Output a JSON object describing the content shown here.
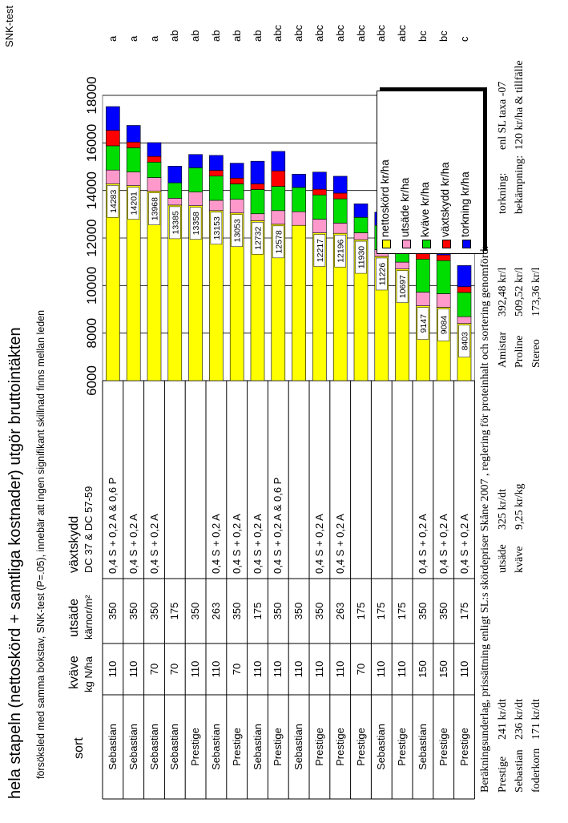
{
  "title": "hela stapeln (nettoskörd + samtliga kostnader) utgör bruttointäkten",
  "subtitle": "försöksled med samma bokstav, SNK-test (P=.05), innebär att ingen signifikant skillnad finns mellan leden",
  "snk_label": "SNK-test",
  "table": {
    "headers": {
      "sort": "sort",
      "kvave": "kväve",
      "kvave_unit": "kg N/ha",
      "utsade": "utsäde",
      "utsade_unit": "kärnor/m²",
      "vaxtskydd": "växtskydd",
      "vaxtskydd_sub": "DC 37 & DC 57-59"
    },
    "rows": [
      {
        "sort": "Sebastian",
        "kvave": "110",
        "utsade": "350",
        "vaxtskydd": "0,4 S + 0,2 A & 0,6 P",
        "sig": "a"
      },
      {
        "sort": "Sebastian",
        "kvave": "110",
        "utsade": "350",
        "vaxtskydd": "0,4 S + 0,2 A",
        "sig": "a"
      },
      {
        "sort": "Sebastian",
        "kvave": "70",
        "utsade": "350",
        "vaxtskydd": "0,4 S + 0,2 A",
        "sig": "a"
      },
      {
        "sort": "Sebastian",
        "kvave": "70",
        "utsade": "175",
        "vaxtskydd": "",
        "sig": "ab"
      },
      {
        "sort": "Prestige",
        "kvave": "110",
        "utsade": "350",
        "vaxtskydd": "",
        "sig": "ab"
      },
      {
        "sort": "Sebastian",
        "kvave": "110",
        "utsade": "263",
        "vaxtskydd": "0,4 S + 0,2 A",
        "sig": "ab"
      },
      {
        "sort": "Prestige",
        "kvave": "70",
        "utsade": "350",
        "vaxtskydd": "0,4 S + 0,2 A",
        "sig": "ab"
      },
      {
        "sort": "Sebastian",
        "kvave": "110",
        "utsade": "175",
        "vaxtskydd": "0,4 S + 0,2 A",
        "sig": "ab"
      },
      {
        "sort": "Prestige",
        "kvave": "110",
        "utsade": "350",
        "vaxtskydd": "0,4 S + 0,2 A & 0,6 P",
        "sig": "abc"
      },
      {
        "sort": "Sebastian",
        "kvave": "110",
        "utsade": "350",
        "vaxtskydd": "",
        "sig": "abc"
      },
      {
        "sort": "Prestige",
        "kvave": "110",
        "utsade": "350",
        "vaxtskydd": "0,4 S + 0,2 A",
        "sig": "abc"
      },
      {
        "sort": "Prestige",
        "kvave": "110",
        "utsade": "263",
        "vaxtskydd": "0,4 S + 0,2 A",
        "sig": "abc"
      },
      {
        "sort": "Prestige",
        "kvave": "70",
        "utsade": "175",
        "vaxtskydd": "",
        "sig": "abc"
      },
      {
        "sort": "Sebastian",
        "kvave": "110",
        "utsade": "175",
        "vaxtskydd": "",
        "sig": "abc"
      },
      {
        "sort": "Prestige",
        "kvave": "110",
        "utsade": "175",
        "vaxtskydd": "",
        "sig": "abc"
      },
      {
        "sort": "Sebastian",
        "kvave": "150",
        "utsade": "350",
        "vaxtskydd": "0,4 S + 0,2 A",
        "sig": "bc"
      },
      {
        "sort": "Prestige",
        "kvave": "150",
        "utsade": "350",
        "vaxtskydd": "0,4 S + 0,2 A",
        "sig": "bc"
      },
      {
        "sort": "Prestige",
        "kvave": "110",
        "utsade": "175",
        "vaxtskydd": "0,4 S + 0,2 A",
        "sig": "c"
      }
    ]
  },
  "chart_data": {
    "type": "bar",
    "stacked": true,
    "orientation": "horizontal",
    "axis_range": [
      6000,
      18000
    ],
    "ticks": [
      "6000",
      "8000",
      "10000",
      "12000",
      "14000",
      "16000",
      "18000"
    ],
    "grid": true,
    "legend_position": "top-right",
    "series": [
      {
        "name": "nettoskörd kr/ha",
        "color": "#ffff00",
        "values": [
          14283,
          14201,
          13968,
          13385,
          13358,
          13153,
          13053,
          12732,
          12578,
          12532,
          12217,
          12196,
          11930,
          11226,
          10697,
          9147,
          9084,
          8403
        ],
        "labels": [
          "14283",
          "14201",
          "13968",
          "13385",
          "13358",
          "13153",
          "13053",
          "12732",
          "12578",
          "",
          "12217",
          "12196",
          "11930",
          "11226",
          "10697",
          "9147",
          "9084",
          "8403"
        ]
      },
      {
        "name": "utsäde kr/ha",
        "color": "#ff99cc",
        "values": [
          575,
          575,
          575,
          288,
          575,
          432,
          575,
          288,
          575,
          575,
          575,
          432,
          288,
          288,
          288,
          575,
          575,
          288
        ]
      },
      {
        "name": "kväve kr/ha",
        "color": "#00dd00",
        "values": [
          1020,
          1020,
          649,
          649,
          1020,
          1020,
          649,
          1020,
          1020,
          1020,
          1020,
          1020,
          649,
          1020,
          1020,
          1391,
          1391,
          1020
        ]
      },
      {
        "name": "växtskydd kr/ha",
        "color": "#ff0000",
        "values": [
          650,
          240,
          240,
          0,
          0,
          240,
          240,
          240,
          650,
          0,
          240,
          240,
          0,
          0,
          0,
          240,
          240,
          240
        ]
      },
      {
        "name": "torkning kr/ha",
        "color": "#0000ff",
        "values": [
          1000,
          700,
          580,
          700,
          560,
          630,
          630,
          950,
          820,
          560,
          720,
          710,
          570,
          550,
          690,
          700,
          750,
          890
        ]
      }
    ]
  },
  "footer": {
    "line1": "Beräkningsunderlag, prissättning enligt SL:s skördepriser Skåne 2007 , reglering för proteinhalt och sortering genomförd:",
    "prices": [
      {
        "name": "Prestige",
        "value": "241 kr/dt"
      },
      {
        "name": "Sebastian",
        "value": "236 kr/dt"
      },
      {
        "name": "foderkorn",
        "value": "171 kr/dt"
      }
    ],
    "inputs": [
      {
        "name": "utsäde",
        "value": "325 kr/dt"
      },
      {
        "name": "kväve",
        "value": "9,25 kr/kg"
      }
    ],
    "chemicals": [
      {
        "name": "Amistar",
        "value": "392,48 kr/l"
      },
      {
        "name": "Proline",
        "value": "509,52 kr/l"
      },
      {
        "name": "Stereo",
        "value": "173,36 kr/l"
      }
    ],
    "other": [
      {
        "name": "torkning:",
        "value": "enl SL taxa -07"
      },
      {
        "name": "bekämpning:",
        "value": "120 kr/ha & tillfälle"
      }
    ]
  }
}
